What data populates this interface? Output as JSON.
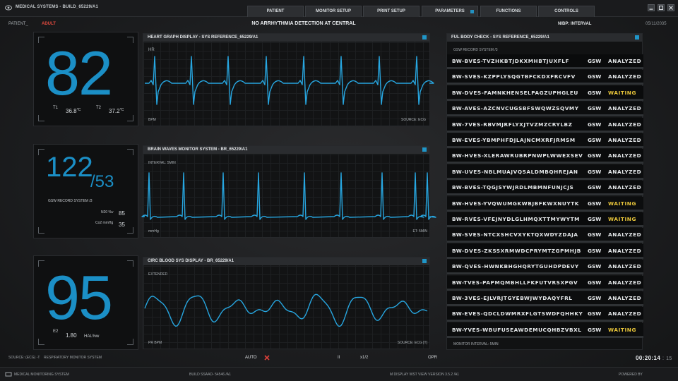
{
  "app_title": "MEDICAL SYSTEMS - BUILD_65229/A1",
  "tabs": [
    {
      "label": "PATIENT"
    },
    {
      "label": "MONITOR SETUP"
    },
    {
      "label": "PRINT SETUP"
    },
    {
      "label": "PARAMETERS",
      "active": true
    },
    {
      "label": "FUNCTIONS"
    },
    {
      "label": "CONTROLS"
    }
  ],
  "header": {
    "patient": "PATIENT_",
    "adult": "ADULT",
    "message": "NO ARRHYTHMIA DETECTION AT CENTRAL",
    "nibp": "NIBP: INTERVAL",
    "date": "05/11/2035"
  },
  "vitals": {
    "heart": {
      "value": "82",
      "t1_label": "T1",
      "t1_value": "36.8",
      "t1_unit": "°C",
      "t2_label": "T2",
      "t2_value": "37.2",
      "t2_unit": "°C"
    },
    "pressure": {
      "systolic": "122",
      "diastolic": "/53",
      "record": "GSW RECORD SYSTEM /3",
      "n20_label": "N20 %v",
      "n20_value": "85",
      "co2_label": "Co2 mmHg",
      "co2_value": "35"
    },
    "spo2": {
      "value": "95",
      "e2_label": "E2",
      "e2_value": "1.80",
      "hal_label": "HAL%w"
    }
  },
  "panels": {
    "heart": {
      "title": "HEART GRAPH DISPLAY - SYS REFERENCE_65229/A1",
      "tl": "HR",
      "bl": "BPM",
      "br": "SOURCE: ECG"
    },
    "brain": {
      "title": "BRAIN WAVES MONITOR SYSTEM - BR_65229/A1",
      "tl": "INTERVAL: 5MIN",
      "bl": "mmHg",
      "br": "ET: 5MIN"
    },
    "circ": {
      "title": "CIRC BLOOD SYS DISPLAY - BR_65229/A1",
      "tl": "EXTENDED",
      "bl": "PR BPM",
      "br": "SOURCE: ECG [T]"
    }
  },
  "right_panel": {
    "title": "FUL BODY CHECK - SYS REFERENCE_65229/A1",
    "subtitle": "GSW RECORD SYSTEM /3",
    "footer": "MONITOR INTERVAL: 5MIN",
    "colors": {
      "analyzed": "#e6e9eb",
      "waiting": "#e7c43a"
    },
    "rows": [
      {
        "code": "BW-BVES-TVZHKBTJDKXMHBTJUXFLF",
        "tag": "GSW",
        "status": "ANALYZED"
      },
      {
        "code": "BW-SVES-KZPPLYSQGTBFCKDXFRCVFV",
        "tag": "GSW",
        "status": "ANALYZED"
      },
      {
        "code": "BW-DVES-FAMNKHENSELPAGZUPHGLEU",
        "tag": "GSW",
        "status": "WAITING"
      },
      {
        "code": "BW-AVES-AZCNVCUGSBFSWQWZSQVMY",
        "tag": "GSW",
        "status": "ANALYZED"
      },
      {
        "code": "BW-7VES-RBVMJRFLYXJTVZMZCRYLBZ",
        "tag": "GSW",
        "status": "ANALYZED"
      },
      {
        "code": "BW-EVES-YBMPHFDJLAJNCMXRFJRMSM",
        "tag": "GSW",
        "status": "ANALYZED"
      },
      {
        "code": "BW-HVES-XLERAWRUBRPNWPLWWEXSEV",
        "tag": "GSW",
        "status": "ANALYZED"
      },
      {
        "code": "BW-UVES-NBLMUAJVQSALDMBQHREJAN",
        "tag": "GSW",
        "status": "ANALYZED"
      },
      {
        "code": "BW-BVES-TQGJSYWJRDLMBMNFUNJCJS",
        "tag": "GSW",
        "status": "ANALYZED"
      },
      {
        "code": "BW-HVES-YVQWUMGKWBJBFKWXNUYTK",
        "tag": "GSW",
        "status": "WAITING"
      },
      {
        "code": "BW-RVES-VFEJNYDLGLHMQXTTMYWYTM",
        "tag": "GSW",
        "status": "WAITING"
      },
      {
        "code": "BW-SVES-NTCXSHCVXYKTQXWDYZDAJA",
        "tag": "GSW",
        "status": "ANALYZED"
      },
      {
        "code": "BW-DVES-ZKSSXRMWDCPRYMTZGPMHJB",
        "tag": "GSW",
        "status": "ANALYZED"
      },
      {
        "code": "BW-QVES-HWNKBHGHQRYTGUHDPDEVY",
        "tag": "GSW",
        "status": "ANALYZED"
      },
      {
        "code": "BW-TVES-PAPMQMBHLLFKFUTVRSXPGV",
        "tag": "GSW",
        "status": "ANALYZED"
      },
      {
        "code": "BW-3VES-EJLVRJTGYEBWJWYDAQYFRL",
        "tag": "GSW",
        "status": "ANALYZED"
      },
      {
        "code": "BW-EVES-QDCLDWMRXFLGTSWDFQHHKY",
        "tag": "GSW",
        "status": "ANALYZED"
      },
      {
        "code": "BW-YVES-WBUFUSEAWDEMUCQHBZVBXL",
        "tag": "GSW",
        "status": "WAITING"
      }
    ]
  },
  "footer": {
    "source": "SOURCE: (ECG) -T",
    "respiratory": "RESPIRATORY MONITOR SYSTEM",
    "auto": "AUTO",
    "ii": "II",
    "x12": "x1/2",
    "opr": "OPR",
    "timer": "00:20:14",
    "timer_frac": "15"
  },
  "bottom_bar": {
    "system": "MEDICAL MONITORING SYSTEM",
    "build": "BUILD SSAAD- 54546 /A1",
    "display": "M DISPLAY WST VIEW  VERSION 3.5.2 /A1",
    "powered": "POWERED BY"
  }
}
